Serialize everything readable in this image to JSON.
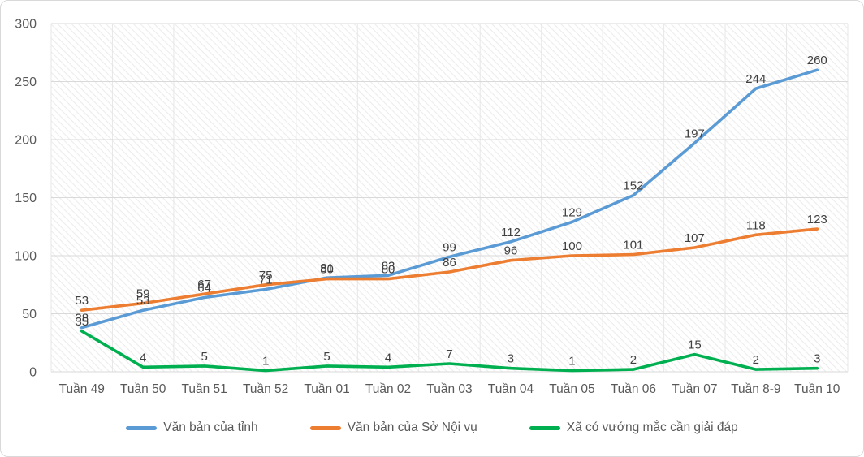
{
  "figure": {
    "background_color": "#ffffff",
    "frame_border_color": "#d9d9d9",
    "plot_hatch_color": "#ececec",
    "gridline_color": "#d9d9d9",
    "vertical_gridline_color": "#e7e7e7",
    "axis_text_color": "#595959",
    "data_label_color": "#404040"
  },
  "chart_data": {
    "type": "line",
    "title": "",
    "xlabel": "",
    "ylabel": "",
    "ylim": [
      0,
      300
    ],
    "ytick_interval": 50,
    "grid": "horizontal-major",
    "legend_position": "bottom",
    "data_labels": true,
    "categories": [
      "Tuần 49",
      "Tuần 50",
      "Tuần 51",
      "Tuần 52",
      "Tuần 01",
      "Tuần 02",
      "Tuần 03",
      "Tuần 04",
      "Tuần 05",
      "Tuần 06",
      "Tuần 07",
      "Tuần 8-9",
      "Tuần 10"
    ],
    "series": [
      {
        "name": "Văn bản của tỉnh",
        "color": "#5B9BD5",
        "values": [
          38,
          53,
          64,
          71,
          81,
          83,
          99,
          112,
          129,
          152,
          197,
          244,
          260
        ]
      },
      {
        "name": "Văn bản của Sở Nội vụ",
        "color": "#ED7D31",
        "values": [
          53,
          59,
          67,
          75,
          80,
          80,
          86,
          96,
          100,
          101,
          107,
          118,
          123
        ]
      },
      {
        "name": "Xã có vướng mắc cần giải đáp",
        "color": "#00B050",
        "values": [
          35,
          4,
          5,
          1,
          5,
          4,
          7,
          3,
          1,
          2,
          15,
          2,
          3
        ]
      }
    ]
  }
}
